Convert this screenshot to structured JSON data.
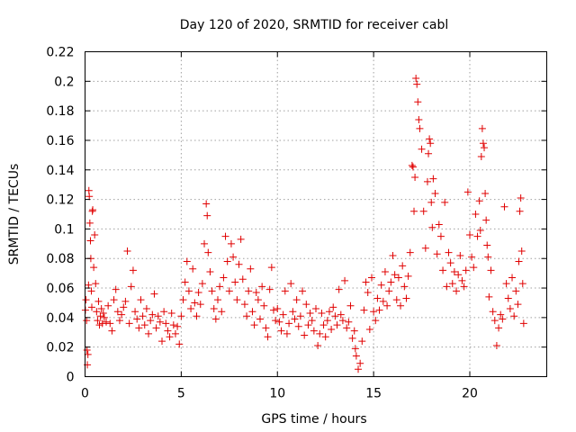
{
  "chart_data": {
    "type": "scatter",
    "title": "Day 120 of 2020, SRMTID for receiver cabl",
    "xlabel": "GPS time / hours",
    "ylabel": "SRMTID / TECUs",
    "xlim": [
      0,
      24
    ],
    "ylim": [
      0,
      0.22
    ],
    "x_ticks": [
      0,
      5,
      10,
      15,
      20
    ],
    "x_tick_labels": [
      "0",
      "5",
      "10",
      "15",
      "20"
    ],
    "y_ticks": [
      0,
      0.02,
      0.04,
      0.06,
      0.08,
      0.1,
      0.12,
      0.14,
      0.16,
      0.18,
      0.2,
      0.22
    ],
    "y_tick_labels": [
      "0",
      "0.02",
      "0.04",
      "0.06",
      "0.08",
      "0.1",
      "0.12",
      "0.14",
      "0.16",
      "0.18",
      "0.2",
      "0.22"
    ],
    "grid": true,
    "marker": "plus",
    "marker_color": "#e00000",
    "series": [
      {
        "name": "SRMTID",
        "x": [
          0.02,
          0.05,
          0.08,
          0.1,
          0.12,
          0.15,
          0.18,
          0.2,
          0.22,
          0.25,
          0.28,
          0.3,
          0.33,
          0.35,
          0.38,
          0.4,
          0.45,
          0.5,
          0.55,
          0.6,
          0.65,
          0.7,
          0.75,
          0.8,
          0.85,
          0.9,
          0.95,
          1.0,
          1.1,
          1.2,
          1.3,
          1.4,
          1.5,
          1.6,
          1.7,
          1.8,
          1.9,
          2.0,
          2.1,
          2.2,
          2.3,
          2.4,
          2.5,
          2.6,
          2.7,
          2.8,
          2.9,
          3.0,
          3.1,
          3.2,
          3.3,
          3.4,
          3.5,
          3.6,
          3.7,
          3.8,
          3.9,
          4.0,
          4.1,
          4.2,
          4.3,
          4.4,
          4.5,
          4.6,
          4.7,
          4.8,
          4.9,
          5.0,
          5.1,
          5.2,
          5.3,
          5.4,
          5.5,
          5.6,
          5.7,
          5.8,
          5.9,
          6.0,
          6.1,
          6.2,
          6.3,
          6.35,
          6.4,
          6.5,
          6.6,
          6.7,
          6.8,
          6.9,
          7.0,
          7.1,
          7.2,
          7.3,
          7.4,
          7.5,
          7.6,
          7.7,
          7.8,
          7.9,
          8.0,
          8.1,
          8.2,
          8.3,
          8.4,
          8.5,
          8.6,
          8.7,
          8.8,
          8.9,
          9.0,
          9.1,
          9.2,
          9.3,
          9.4,
          9.5,
          9.6,
          9.7,
          9.8,
          9.9,
          10.0,
          10.1,
          10.2,
          10.3,
          10.4,
          10.5,
          10.6,
          10.7,
          10.8,
          10.9,
          11.0,
          11.1,
          11.2,
          11.3,
          11.4,
          11.5,
          11.6,
          11.7,
          11.8,
          11.9,
          12.0,
          12.1,
          12.2,
          12.3,
          12.4,
          12.5,
          12.6,
          12.7,
          12.8,
          12.9,
          13.0,
          13.1,
          13.2,
          13.3,
          13.4,
          13.5,
          13.6,
          13.7,
          13.8,
          13.9,
          14.0,
          14.05,
          14.1,
          14.2,
          14.3,
          14.4,
          14.5,
          14.6,
          14.7,
          14.8,
          14.9,
          15.0,
          15.1,
          15.2,
          15.3,
          15.4,
          15.5,
          15.6,
          15.7,
          15.8,
          15.9,
          16.0,
          16.1,
          16.2,
          16.3,
          16.4,
          16.5,
          16.6,
          16.7,
          16.8,
          16.9,
          17.0,
          17.05,
          17.1,
          17.15,
          17.2,
          17.25,
          17.3,
          17.35,
          17.4,
          17.5,
          17.6,
          17.7,
          17.8,
          17.85,
          17.9,
          17.95,
          18.0,
          18.05,
          18.1,
          18.2,
          18.3,
          18.4,
          18.5,
          18.6,
          18.7,
          18.8,
          18.9,
          19.0,
          19.1,
          19.2,
          19.3,
          19.4,
          19.5,
          19.6,
          19.7,
          19.8,
          19.9,
          20.0,
          20.1,
          20.2,
          20.3,
          20.4,
          20.5,
          20.55,
          20.6,
          20.65,
          20.7,
          20.75,
          20.8,
          20.85,
          20.9,
          20.95,
          21.0,
          21.1,
          21.2,
          21.3,
          21.4,
          21.5,
          21.6,
          21.7,
          21.8,
          21.9,
          22.0,
          22.1,
          22.2,
          22.3,
          22.4,
          22.5,
          22.55,
          22.6,
          22.65,
          22.7,
          22.75,
          22.8
        ],
        "y": [
          0.045,
          0.052,
          0.038,
          0.018,
          0.008,
          0.015,
          0.062,
          0.126,
          0.122,
          0.104,
          0.092,
          0.08,
          0.058,
          0.047,
          0.112,
          0.113,
          0.074,
          0.096,
          0.063,
          0.044,
          0.038,
          0.051,
          0.035,
          0.041,
          0.046,
          0.036,
          0.043,
          0.04,
          0.037,
          0.048,
          0.036,
          0.031,
          0.052,
          0.059,
          0.044,
          0.038,
          0.042,
          0.047,
          0.051,
          0.085,
          0.036,
          0.061,
          0.072,
          0.044,
          0.039,
          0.033,
          0.052,
          0.041,
          0.035,
          0.046,
          0.029,
          0.038,
          0.042,
          0.056,
          0.033,
          0.041,
          0.037,
          0.024,
          0.044,
          0.036,
          0.031,
          0.027,
          0.043,
          0.035,
          0.029,
          0.034,
          0.022,
          0.041,
          0.052,
          0.064,
          0.078,
          0.058,
          0.046,
          0.073,
          0.05,
          0.041,
          0.057,
          0.049,
          0.063,
          0.09,
          0.117,
          0.109,
          0.084,
          0.071,
          0.058,
          0.046,
          0.039,
          0.052,
          0.061,
          0.044,
          0.067,
          0.095,
          0.078,
          0.058,
          0.09,
          0.081,
          0.064,
          0.052,
          0.076,
          0.093,
          0.066,
          0.049,
          0.041,
          0.058,
          0.073,
          0.044,
          0.035,
          0.057,
          0.052,
          0.039,
          0.061,
          0.048,
          0.033,
          0.027,
          0.059,
          0.074,
          0.045,
          0.038,
          0.046,
          0.037,
          0.031,
          0.042,
          0.058,
          0.029,
          0.036,
          0.063,
          0.044,
          0.039,
          0.052,
          0.034,
          0.041,
          0.058,
          0.028,
          0.049,
          0.035,
          0.043,
          0.038,
          0.031,
          0.046,
          0.021,
          0.029,
          0.043,
          0.035,
          0.027,
          0.038,
          0.044,
          0.032,
          0.047,
          0.041,
          0.035,
          0.059,
          0.042,
          0.038,
          0.065,
          0.033,
          0.037,
          0.048,
          0.026,
          0.031,
          0.019,
          0.014,
          0.005,
          0.009,
          0.024,
          0.045,
          0.064,
          0.057,
          0.032,
          0.067,
          0.044,
          0.038,
          0.053,
          0.045,
          0.062,
          0.051,
          0.071,
          0.048,
          0.058,
          0.064,
          0.082,
          0.069,
          0.052,
          0.067,
          0.048,
          0.075,
          0.061,
          0.053,
          0.068,
          0.084,
          0.143,
          0.142,
          0.112,
          0.135,
          0.202,
          0.198,
          0.186,
          0.174,
          0.168,
          0.154,
          0.112,
          0.087,
          0.132,
          0.151,
          0.161,
          0.158,
          0.118,
          0.101,
          0.134,
          0.124,
          0.083,
          0.103,
          0.095,
          0.072,
          0.118,
          0.061,
          0.084,
          0.077,
          0.063,
          0.071,
          0.058,
          0.069,
          0.082,
          0.065,
          0.061,
          0.072,
          0.125,
          0.096,
          0.081,
          0.074,
          0.11,
          0.095,
          0.119,
          0.099,
          0.149,
          0.168,
          0.158,
          0.155,
          0.124,
          0.106,
          0.089,
          0.081,
          0.054,
          0.072,
          0.044,
          0.038,
          0.021,
          0.033,
          0.042,
          0.039,
          0.115,
          0.063,
          0.053,
          0.046,
          0.067,
          0.041,
          0.058,
          0.049,
          0.078,
          0.112,
          0.121,
          0.085,
          0.063,
          0.036
        ]
      }
    ]
  }
}
